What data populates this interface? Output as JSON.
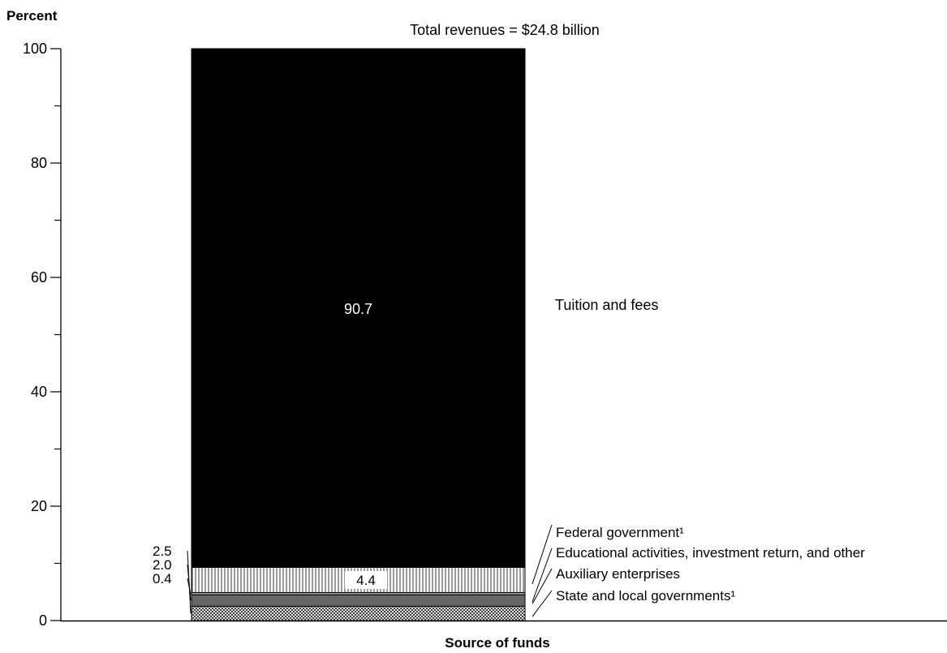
{
  "chart_data": {
    "type": "bar",
    "stacked": true,
    "title": "Total revenues = $24.8 billion",
    "ylabel": "Percent",
    "xlabel": "Source of funds",
    "ylim": [
      0,
      100
    ],
    "yticks": [
      0,
      20,
      40,
      60,
      80,
      100
    ],
    "ytick_labels": [
      "0",
      "20",
      "40",
      "60",
      "80",
      "100"
    ],
    "grid": false,
    "series": [
      {
        "name": "State and local governments¹",
        "value": 2.5,
        "value_label": "2.5",
        "pattern": "crosshatch",
        "color": "#ffffff"
      },
      {
        "name": "Auxiliary enterprises",
        "value": 2.0,
        "value_label": "2.0",
        "pattern": "solid",
        "color": "#666666"
      },
      {
        "name": "Educational activities, investment return, and other",
        "value": 0.4,
        "value_label": "0.4",
        "pattern": "solid",
        "color": "#999999"
      },
      {
        "name": "Federal government¹",
        "value": 4.4,
        "value_label": "4.4",
        "pattern": "vertical-lines",
        "color": "#ffffff"
      },
      {
        "name": "Tuition and fees",
        "value": 90.7,
        "value_label": "90.7",
        "pattern": "solid",
        "color": "#000000"
      }
    ],
    "left_labels": [
      "2.5",
      "2.0",
      "0.4"
    ],
    "colors": {
      "axis": "#000000",
      "text": "#000000",
      "inside_label_dark": "#ffffff"
    }
  }
}
